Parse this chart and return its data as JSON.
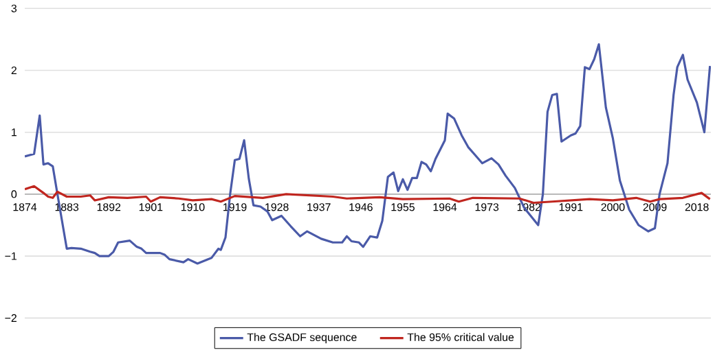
{
  "chart_data": {
    "type": "line",
    "xlim": [
      1874,
      2021
    ],
    "xticks": [
      1874,
      1883,
      1892,
      1901,
      1910,
      1919,
      1928,
      1937,
      1946,
      1955,
      1964,
      1973,
      1982,
      1991,
      2000,
      2009,
      2018
    ],
    "ylim": [
      -2,
      3
    ],
    "yticks": [
      {
        "value": -2,
        "label": "−2"
      },
      {
        "value": -1,
        "label": "−1"
      },
      0,
      1,
      2,
      3
    ],
    "grid": "y",
    "legend": "bottom",
    "marker": "none",
    "line_style": "solid",
    "series": [
      {
        "name": "The GSADF sequence",
        "color": "#4a5aa8",
        "x": [
          1874,
          1876,
          1877.2,
          1878,
          1879,
          1880,
          1881,
          1883,
          1884,
          1886,
          1888,
          1889,
          1890,
          1892,
          1893,
          1894,
          1896.5,
          1898,
          1899,
          1900,
          1903,
          1904,
          1905,
          1908,
          1909,
          1911,
          1914,
          1915.5,
          1916,
          1917,
          1918,
          1919,
          1920,
          1921,
          1922,
          1923,
          1924.5,
          1926,
          1927,
          1929,
          1931,
          1933,
          1934.5,
          1937.5,
          1940,
          1942,
          1943,
          1944,
          1945.6,
          1946.5,
          1948,
          1949.5,
          1950.6,
          1951.8,
          1953,
          1954,
          1955,
          1956,
          1957,
          1958,
          1959,
          1960,
          1961,
          1962,
          1964,
          1964.6,
          1966,
          1967.6,
          1969,
          1970.5,
          1972,
          1974,
          1975.5,
          1977,
          1979,
          1981,
          1984,
          1985,
          1986,
          1987,
          1988,
          1989,
          1990,
          1991,
          1992,
          1993,
          1994,
          1995,
          1996,
          1997,
          1998.5,
          2000,
          2001.5,
          2003.5,
          2005.5,
          2007.6,
          2009,
          2010,
          2011.7,
          2013,
          2013.8,
          2015,
          2016,
          2018,
          2019.6,
          2020.8
        ],
        "values": [
          0.61,
          0.65,
          1.27,
          0.48,
          0.5,
          0.45,
          0.0,
          -0.88,
          -0.87,
          -0.88,
          -0.93,
          -0.95,
          -1.0,
          -1.0,
          -0.93,
          -0.78,
          -0.75,
          -0.85,
          -0.88,
          -0.95,
          -0.95,
          -0.98,
          -1.05,
          -1.1,
          -1.05,
          -1.12,
          -1.03,
          -0.88,
          -0.9,
          -0.7,
          0.0,
          0.55,
          0.57,
          0.87,
          0.25,
          -0.18,
          -0.2,
          -0.28,
          -0.42,
          -0.35,
          -0.52,
          -0.68,
          -0.6,
          -0.72,
          -0.78,
          -0.78,
          -0.68,
          -0.76,
          -0.78,
          -0.85,
          -0.68,
          -0.7,
          -0.43,
          0.28,
          0.35,
          0.05,
          0.24,
          0.07,
          0.26,
          0.26,
          0.52,
          0.48,
          0.37,
          0.57,
          0.87,
          1.3,
          1.22,
          0.95,
          0.76,
          0.63,
          0.5,
          0.58,
          0.48,
          0.3,
          0.1,
          -0.22,
          -0.5,
          0.0,
          1.33,
          1.6,
          1.62,
          0.85,
          0.9,
          0.95,
          0.98,
          1.1,
          2.05,
          2.02,
          2.18,
          2.42,
          1.4,
          0.9,
          0.22,
          -0.25,
          -0.5,
          -0.6,
          -0.55,
          0.0,
          0.5,
          1.6,
          2.05,
          2.25,
          1.85,
          1.48,
          1.0,
          2.07
        ]
      },
      {
        "name": "The 95% critical value",
        "color": "#c0261f",
        "x": [
          1874,
          1876,
          1878,
          1879,
          1880,
          1881,
          1883,
          1886,
          1888,
          1889,
          1892,
          1896,
          1900,
          1901,
          1903,
          1907,
          1910,
          1914,
          1916,
          1919,
          1925,
          1930,
          1940,
          1943,
          1950,
          1955,
          1965,
          1967,
          1970,
          1980,
          1983,
          1987,
          1995,
          2000,
          2005,
          2008,
          2010,
          2015,
          2019,
          2020.8
        ],
        "values": [
          0.08,
          0.13,
          0.02,
          -0.04,
          -0.06,
          0.04,
          -0.04,
          -0.04,
          -0.02,
          -0.1,
          -0.05,
          -0.06,
          -0.04,
          -0.12,
          -0.05,
          -0.07,
          -0.1,
          -0.08,
          -0.12,
          -0.03,
          -0.06,
          0.0,
          -0.04,
          -0.07,
          -0.05,
          -0.08,
          -0.07,
          -0.12,
          -0.06,
          -0.07,
          -0.14,
          -0.12,
          -0.08,
          -0.1,
          -0.06,
          -0.12,
          -0.08,
          -0.06,
          0.02,
          -0.08
        ]
      }
    ]
  }
}
